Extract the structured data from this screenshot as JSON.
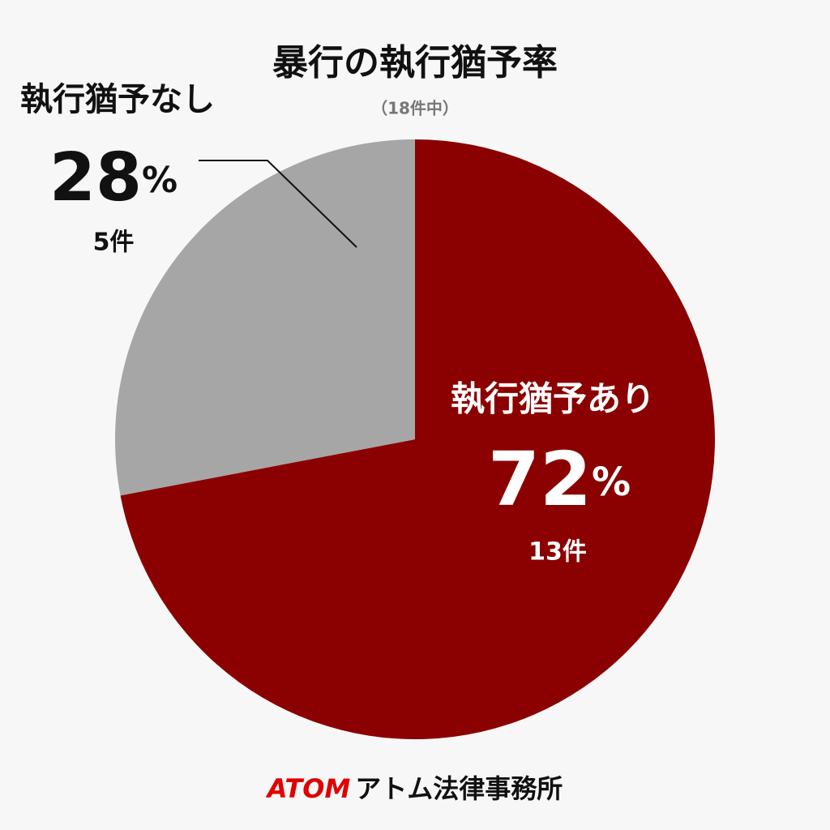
{
  "chart_data": {
    "type": "pie",
    "title": "暴行の執行猶予率",
    "subtitle": "（18件中）",
    "categories": [
      "執行猶予あり",
      "執行猶予なし"
    ],
    "values": [
      72,
      28
    ],
    "unit": "%",
    "count_labels": [
      "13件",
      "5件"
    ],
    "colors": [
      "#8b0000",
      "#a6a6a6"
    ]
  },
  "footer": {
    "brand": "ATOM",
    "name": "アトム法律事務所"
  }
}
